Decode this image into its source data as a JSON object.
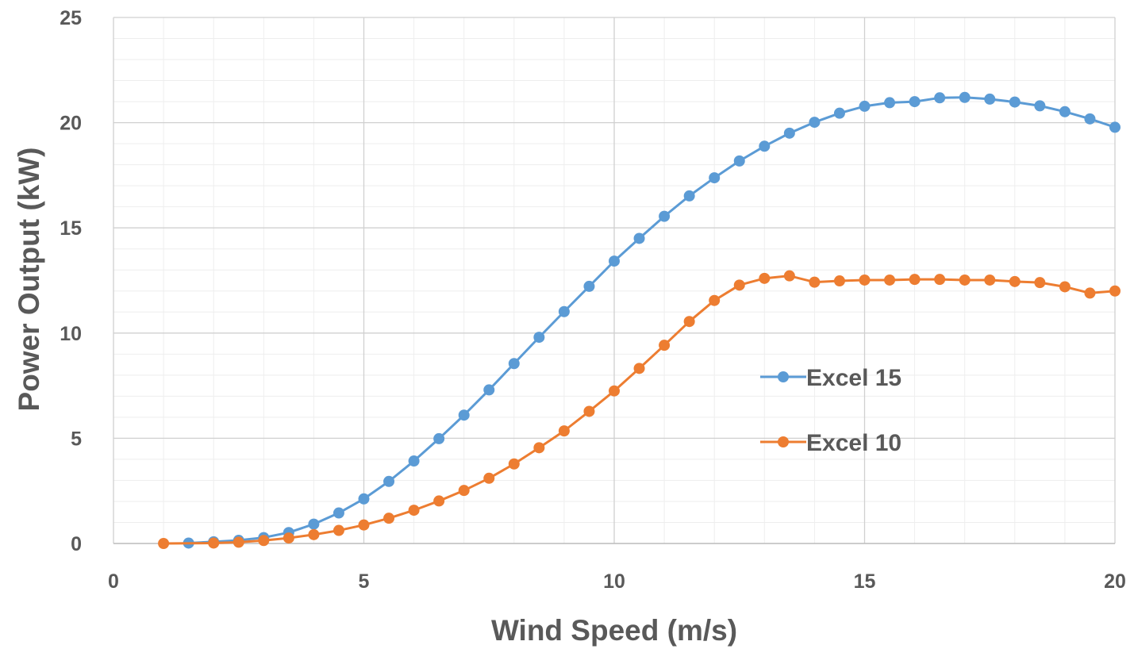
{
  "chart_data": {
    "type": "line",
    "title": "",
    "xlabel": "Wind Speed (m/s)",
    "ylabel": "Power Output (kW)",
    "xlim": [
      0,
      20
    ],
    "ylim": [
      0,
      25
    ],
    "x_ticks": [
      "0",
      "5",
      "10",
      "15",
      "20"
    ],
    "y_ticks": [
      "0",
      "5",
      "10",
      "15",
      "20",
      "25"
    ],
    "grid": true,
    "minor_grid": true,
    "legend_position": "right-center",
    "series": [
      {
        "name": "Excel 15",
        "color": "#5b9bd5",
        "points": [
          [
            1.5,
            0.02
          ],
          [
            2.0,
            0.08
          ],
          [
            2.5,
            0.15
          ],
          [
            3.0,
            0.28
          ],
          [
            3.5,
            0.52
          ],
          [
            4.0,
            0.92
          ],
          [
            4.5,
            1.45
          ],
          [
            5.0,
            2.12
          ],
          [
            5.5,
            2.95
          ],
          [
            6.0,
            3.92
          ],
          [
            6.5,
            4.98
          ],
          [
            7.0,
            6.1
          ],
          [
            7.5,
            7.3
          ],
          [
            8.0,
            8.55
          ],
          [
            8.5,
            9.8
          ],
          [
            9.0,
            11.02
          ],
          [
            9.5,
            12.22
          ],
          [
            10.0,
            13.42
          ],
          [
            10.5,
            14.5
          ],
          [
            11.0,
            15.55
          ],
          [
            11.5,
            16.52
          ],
          [
            12.0,
            17.38
          ],
          [
            12.5,
            18.18
          ],
          [
            13.0,
            18.88
          ],
          [
            13.5,
            19.5
          ],
          [
            14.0,
            20.02
          ],
          [
            14.5,
            20.45
          ],
          [
            15.0,
            20.78
          ],
          [
            15.5,
            20.95
          ],
          [
            16.0,
            21.0
          ],
          [
            16.5,
            21.18
          ],
          [
            17.0,
            21.2
          ],
          [
            17.5,
            21.12
          ],
          [
            18.0,
            20.98
          ],
          [
            18.5,
            20.8
          ],
          [
            19.0,
            20.52
          ],
          [
            19.5,
            20.18
          ],
          [
            20.0,
            19.78
          ]
        ]
      },
      {
        "name": "Excel 10",
        "color": "#ed7d31",
        "points": [
          [
            1.0,
            0.0
          ],
          [
            2.0,
            0.02
          ],
          [
            2.5,
            0.06
          ],
          [
            3.0,
            0.14
          ],
          [
            3.5,
            0.26
          ],
          [
            4.0,
            0.42
          ],
          [
            4.5,
            0.62
          ],
          [
            5.0,
            0.88
          ],
          [
            5.5,
            1.2
          ],
          [
            6.0,
            1.58
          ],
          [
            6.5,
            2.02
          ],
          [
            7.0,
            2.52
          ],
          [
            7.5,
            3.1
          ],
          [
            8.0,
            3.78
          ],
          [
            8.5,
            4.55
          ],
          [
            9.0,
            5.35
          ],
          [
            9.5,
            6.28
          ],
          [
            10.0,
            7.25
          ],
          [
            10.5,
            8.32
          ],
          [
            11.0,
            9.42
          ],
          [
            11.5,
            10.55
          ],
          [
            12.0,
            11.55
          ],
          [
            12.5,
            12.28
          ],
          [
            13.0,
            12.6
          ],
          [
            13.5,
            12.72
          ],
          [
            14.0,
            12.42
          ],
          [
            14.5,
            12.48
          ],
          [
            15.0,
            12.52
          ],
          [
            15.5,
            12.52
          ],
          [
            16.0,
            12.55
          ],
          [
            16.5,
            12.55
          ],
          [
            17.0,
            12.52
          ],
          [
            17.5,
            12.52
          ],
          [
            18.0,
            12.45
          ],
          [
            18.5,
            12.4
          ],
          [
            19.0,
            12.2
          ],
          [
            19.5,
            11.9
          ],
          [
            20.0,
            12.0
          ]
        ]
      }
    ]
  }
}
